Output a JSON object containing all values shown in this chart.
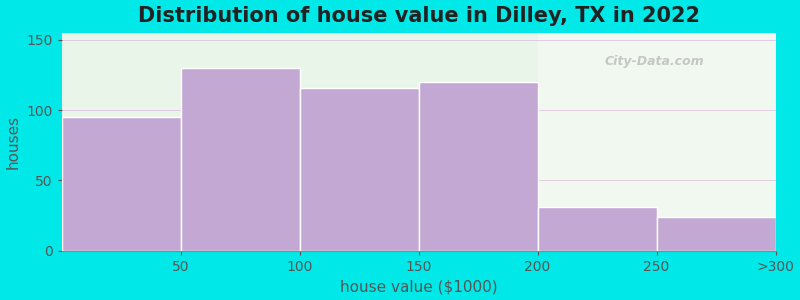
{
  "title": "Distribution of house value in Dilley, TX in 2022",
  "xlabel": "house value ($1000)",
  "ylabel": "houses",
  "bar_labels": [
    "50",
    "100",
    "150",
    "200",
    "250",
    ">300"
  ],
  "bar_heights": [
    95,
    130,
    116,
    120,
    31,
    24
  ],
  "bar_color": "#c4a8d4",
  "bar_edge_color": "#ffffff",
  "background_color": "#00e8e8",
  "plot_bg_color_left": "#eaf5ea",
  "plot_bg_color_right": "#f0f8f0",
  "ylim": [
    0,
    155
  ],
  "yticks": [
    0,
    50,
    100,
    150
  ],
  "title_fontsize": 15,
  "axis_label_fontsize": 11,
  "tick_fontsize": 10,
  "watermark": "City-Data.com"
}
